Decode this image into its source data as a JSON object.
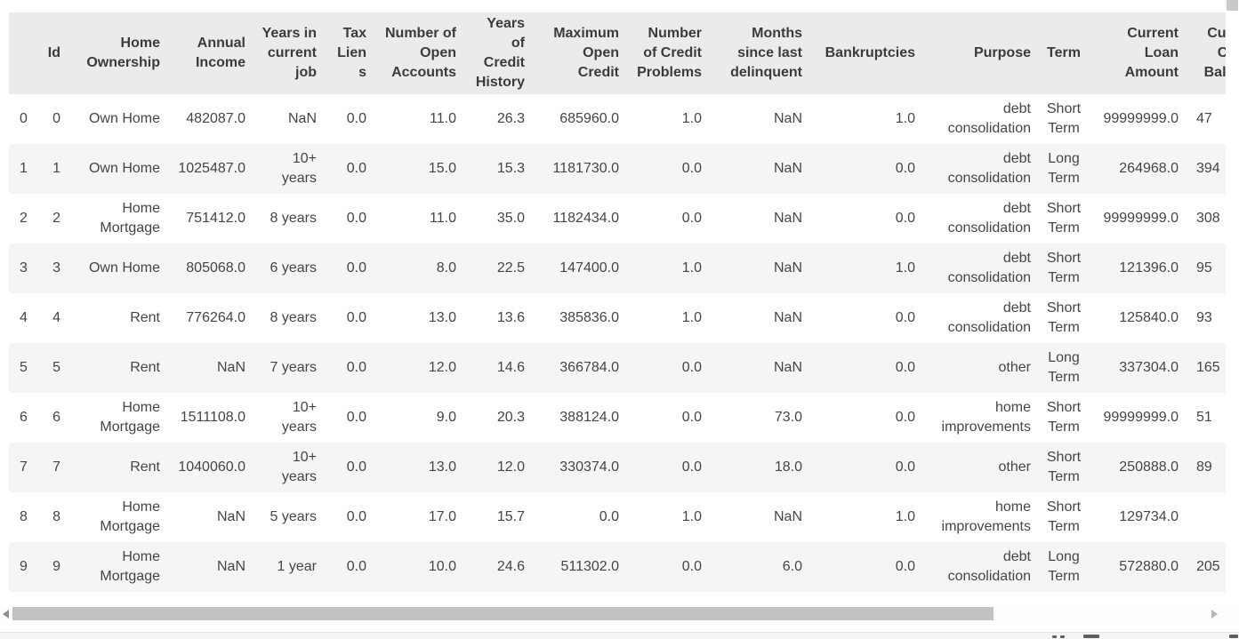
{
  "colors": {
    "header_bg": "#ebebeb",
    "header_text": "#3b3b3b",
    "text": "#454545",
    "row_alt_bg": "#f5f5f5",
    "hthumb": "#c2c2c2",
    "vthumb": "#c9c9c9",
    "arrow_left": "#8f8f8f",
    "arrow_right": "#b3b3b3",
    "footer_bg": "#f4f4f4",
    "footer_border": "#e4e4e4"
  },
  "table": {
    "columns": [
      {
        "key": "index",
        "label": ""
      },
      {
        "key": "id",
        "label": "Id"
      },
      {
        "key": "home_ownership",
        "label": "Home Ownership"
      },
      {
        "key": "annual_income",
        "label": "Annual Income"
      },
      {
        "key": "years_in_current_job",
        "label": "Years in current job"
      },
      {
        "key": "tax_liens",
        "label": "Tax Liens"
      },
      {
        "key": "number_of_open_accounts",
        "label": "Number of Open Accounts"
      },
      {
        "key": "years_of_credit_history",
        "label": "Years of Credit History"
      },
      {
        "key": "maximum_open_credit",
        "label": "Maximum Open Credit"
      },
      {
        "key": "number_of_credit_problems",
        "label": "Number of Credit Problems"
      },
      {
        "key": "months_since_last_delinquent",
        "label": "Months since last delinquent"
      },
      {
        "key": "bankruptcies",
        "label": "Bankruptcies"
      },
      {
        "key": "purpose",
        "label": "Purpose"
      },
      {
        "key": "term",
        "label": "Term"
      },
      {
        "key": "current_loan_amount",
        "label": "Current Loan Amount"
      },
      {
        "key": "current_credit_balance",
        "label": "Current Credit Balance",
        "clipped": true
      }
    ],
    "rows": [
      [
        "0",
        "0",
        "Own Home",
        "482087.0",
        "NaN",
        "0.0",
        "11.0",
        "26.3",
        "685960.0",
        "1.0",
        "NaN",
        "1.0",
        "debt consolidation",
        "Short Term",
        "99999999.0",
        "47"
      ],
      [
        "1",
        "1",
        "Own Home",
        "1025487.0",
        "10+ years",
        "0.0",
        "15.0",
        "15.3",
        "1181730.0",
        "0.0",
        "NaN",
        "0.0",
        "debt consolidation",
        "Long Term",
        "264968.0",
        "394"
      ],
      [
        "2",
        "2",
        "Home Mortgage",
        "751412.0",
        "8 years",
        "0.0",
        "11.0",
        "35.0",
        "1182434.0",
        "0.0",
        "NaN",
        "0.0",
        "debt consolidation",
        "Short Term",
        "99999999.0",
        "308"
      ],
      [
        "3",
        "3",
        "Own Home",
        "805068.0",
        "6 years",
        "0.0",
        "8.0",
        "22.5",
        "147400.0",
        "1.0",
        "NaN",
        "1.0",
        "debt consolidation",
        "Short Term",
        "121396.0",
        "95"
      ],
      [
        "4",
        "4",
        "Rent",
        "776264.0",
        "8 years",
        "0.0",
        "13.0",
        "13.6",
        "385836.0",
        "1.0",
        "NaN",
        "0.0",
        "debt consolidation",
        "Short Term",
        "125840.0",
        "93"
      ],
      [
        "5",
        "5",
        "Rent",
        "NaN",
        "7 years",
        "0.0",
        "12.0",
        "14.6",
        "366784.0",
        "0.0",
        "NaN",
        "0.0",
        "other",
        "Long Term",
        "337304.0",
        "165"
      ],
      [
        "6",
        "6",
        "Home Mortgage",
        "1511108.0",
        "10+ years",
        "0.0",
        "9.0",
        "20.3",
        "388124.0",
        "0.0",
        "73.0",
        "0.0",
        "home improvements",
        "Short Term",
        "99999999.0",
        "51"
      ],
      [
        "7",
        "7",
        "Rent",
        "1040060.0",
        "10+ years",
        "0.0",
        "13.0",
        "12.0",
        "330374.0",
        "0.0",
        "18.0",
        "0.0",
        "other",
        "Short Term",
        "250888.0",
        "89"
      ],
      [
        "8",
        "8",
        "Home Mortgage",
        "NaN",
        "5 years",
        "0.0",
        "17.0",
        "15.7",
        "0.0",
        "1.0",
        "NaN",
        "1.0",
        "home improvements",
        "Short Term",
        "129734.0",
        ""
      ],
      [
        "9",
        "9",
        "Home Mortgage",
        "NaN",
        "1 year",
        "0.0",
        "10.0",
        "24.6",
        "511302.0",
        "0.0",
        "6.0",
        "0.0",
        "debt consolidation",
        "Long Term",
        "572880.0",
        "205"
      ]
    ]
  }
}
